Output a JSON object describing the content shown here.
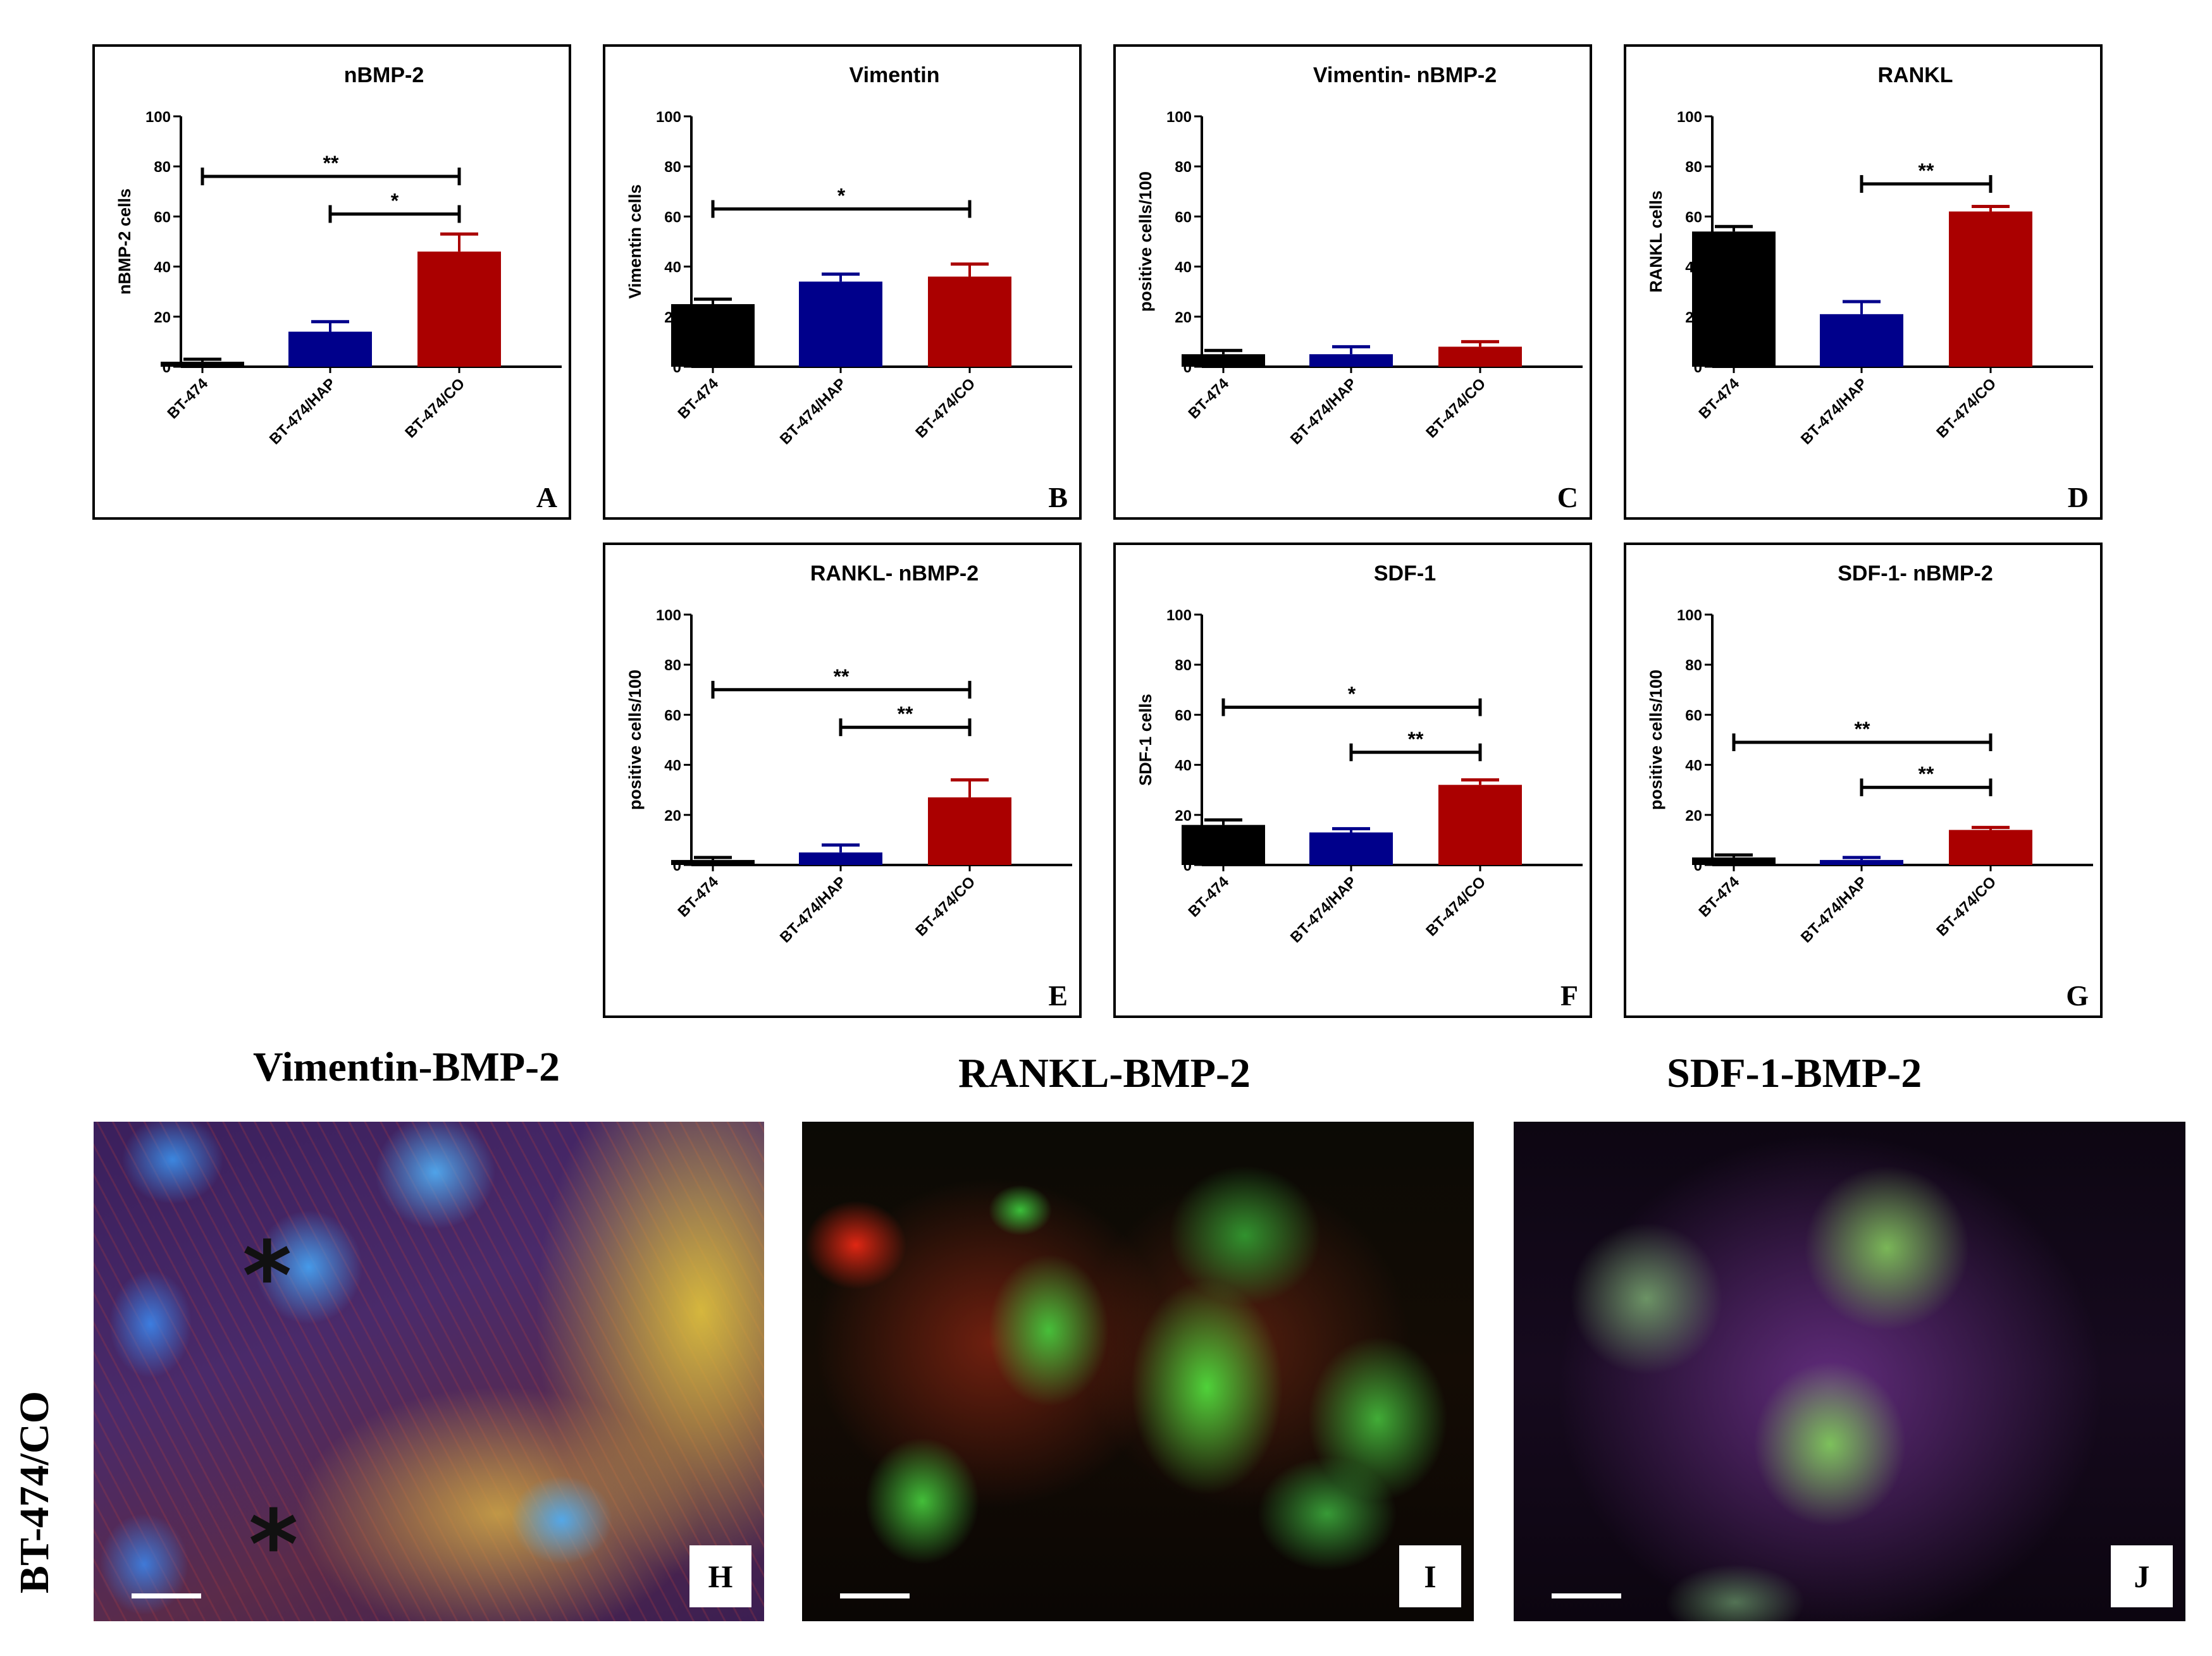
{
  "chart_data": [
    {
      "type": "bar",
      "panel": "A",
      "title": "nBMP-2",
      "ylabel": "nBMP-2 cells",
      "ylim": [
        0,
        100
      ],
      "yticks": [
        0,
        20,
        40,
        60,
        80,
        100
      ],
      "categories": [
        "BT-474",
        "BT-474/HAP",
        "BT-474/CO"
      ],
      "values": [
        2,
        14,
        46
      ],
      "errors": [
        1,
        4,
        7
      ],
      "colors": [
        "#000000",
        "#00008b",
        "#aa0000"
      ],
      "significance": [
        {
          "from": 0,
          "to": 2,
          "label": "**",
          "y": 76
        },
        {
          "from": 1,
          "to": 2,
          "label": "*",
          "y": 61
        }
      ]
    },
    {
      "type": "bar",
      "panel": "B",
      "title": "Vimentin",
      "ylabel": "Vimentin cells",
      "ylim": [
        0,
        100
      ],
      "yticks": [
        0,
        20,
        40,
        60,
        80,
        100
      ],
      "categories": [
        "BT-474",
        "BT-474/HAP",
        "BT-474/CO"
      ],
      "values": [
        25,
        34,
        36
      ],
      "errors": [
        2,
        3,
        5
      ],
      "colors": [
        "#000000",
        "#00008b",
        "#aa0000"
      ],
      "significance": [
        {
          "from": 0,
          "to": 2,
          "label": "*",
          "y": 63
        }
      ]
    },
    {
      "type": "bar",
      "panel": "C",
      "title": "Vimentin- nBMP-2",
      "ylabel": "positive cells/100",
      "ylim": [
        0,
        100
      ],
      "yticks": [
        0,
        20,
        40,
        60,
        80,
        100
      ],
      "categories": [
        "BT-474",
        "BT-474/HAP",
        "BT-474/CO"
      ],
      "values": [
        5,
        5,
        8
      ],
      "errors": [
        1.5,
        3,
        2
      ],
      "colors": [
        "#000000",
        "#00008b",
        "#aa0000"
      ],
      "significance": []
    },
    {
      "type": "bar",
      "panel": "D",
      "title": "RANKL",
      "ylabel": "RANKL cells",
      "ylim": [
        0,
        100
      ],
      "yticks": [
        0,
        20,
        40,
        60,
        80,
        100
      ],
      "categories": [
        "BT-474",
        "BT-474/HAP",
        "BT-474/CO"
      ],
      "values": [
        54,
        21,
        62
      ],
      "errors": [
        2,
        5,
        2
      ],
      "colors": [
        "#000000",
        "#00008b",
        "#aa0000"
      ],
      "significance": [
        {
          "from": 1,
          "to": 2,
          "label": "**",
          "y": 73
        }
      ]
    },
    {
      "type": "bar",
      "panel": "E",
      "title": "RANKL- nBMP-2",
      "ylabel": "positive cells/100",
      "ylim": [
        0,
        100
      ],
      "yticks": [
        0,
        20,
        40,
        60,
        80,
        100
      ],
      "categories": [
        "BT-474",
        "BT-474/HAP",
        "BT-474/CO"
      ],
      "values": [
        2,
        5,
        27
      ],
      "errors": [
        1,
        3,
        7
      ],
      "colors": [
        "#000000",
        "#00008b",
        "#aa0000"
      ],
      "significance": [
        {
          "from": 0,
          "to": 2,
          "label": "**",
          "y": 70
        },
        {
          "from": 1,
          "to": 2,
          "label": "**",
          "y": 55
        }
      ]
    },
    {
      "type": "bar",
      "panel": "F",
      "title": "SDF-1",
      "ylabel": "SDF-1 cells",
      "ylim": [
        0,
        100
      ],
      "yticks": [
        0,
        20,
        40,
        60,
        80,
        100
      ],
      "categories": [
        "BT-474",
        "BT-474/HAP",
        "BT-474/CO"
      ],
      "values": [
        16,
        13,
        32
      ],
      "errors": [
        2,
        1.5,
        2
      ],
      "colors": [
        "#000000",
        "#00008b",
        "#aa0000"
      ],
      "significance": [
        {
          "from": 0,
          "to": 2,
          "label": "*",
          "y": 63
        },
        {
          "from": 1,
          "to": 2,
          "label": "**",
          "y": 45
        }
      ]
    },
    {
      "type": "bar",
      "panel": "G",
      "title": "SDF-1- nBMP-2",
      "ylabel": "positive cells/100",
      "ylim": [
        0,
        100
      ],
      "yticks": [
        0,
        20,
        40,
        60,
        80,
        100
      ],
      "categories": [
        "BT-474",
        "BT-474/HAP",
        "BT-474/CO"
      ],
      "values": [
        3,
        2,
        14
      ],
      "errors": [
        1,
        1,
        1
      ],
      "colors": [
        "#000000",
        "#00008b",
        "#aa0000"
      ],
      "significance": [
        {
          "from": 0,
          "to": 2,
          "label": "**",
          "y": 49
        },
        {
          "from": 1,
          "to": 2,
          "label": "**",
          "y": 31
        }
      ]
    }
  ],
  "micrographs": {
    "row_label": "BT-474/CO",
    "items": [
      {
        "title": "Vimentin-BMP-2",
        "letter": "H"
      },
      {
        "title": "RANKL-BMP-2",
        "letter": "I"
      },
      {
        "title": "SDF-1-BMP-2",
        "letter": "J"
      }
    ]
  }
}
